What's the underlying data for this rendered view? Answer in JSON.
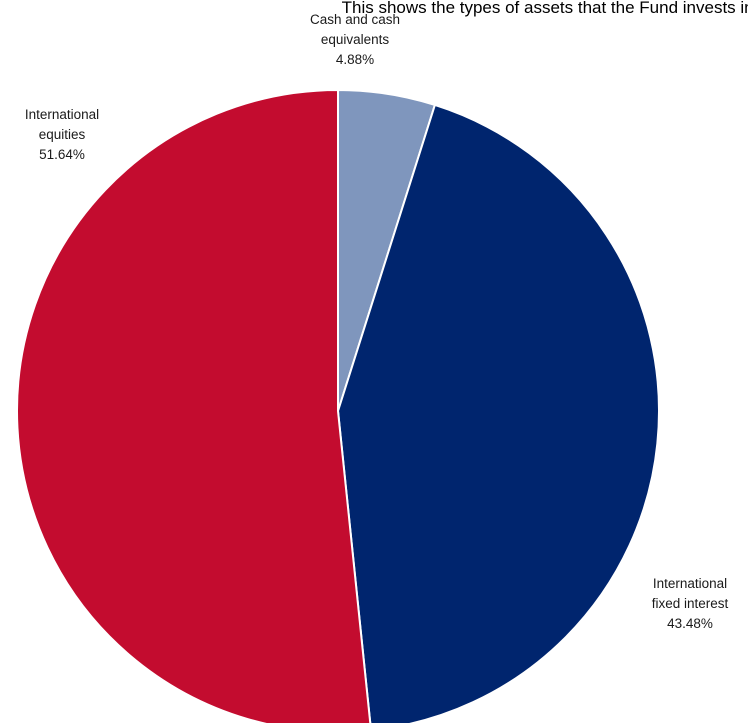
{
  "chart_data": {
    "type": "pie",
    "title": "This shows the types of assets that the Fund invests in.",
    "slices": [
      {
        "label_lines": [
          "Cash and cash",
          "equivalents"
        ],
        "value_label": "4.88%",
        "value": 4.88,
        "color": "#7f96bd"
      },
      {
        "label_lines": [
          "International",
          "fixed interest"
        ],
        "value_label": "43.48%",
        "value": 43.48,
        "color": "#00256e"
      },
      {
        "label_lines": [
          "International",
          "equities"
        ],
        "value_label": "51.64%",
        "value": 51.64,
        "color": "#c30c2f"
      }
    ],
    "start_angle_deg": 0,
    "direction": "clockwise",
    "legend": "none"
  }
}
